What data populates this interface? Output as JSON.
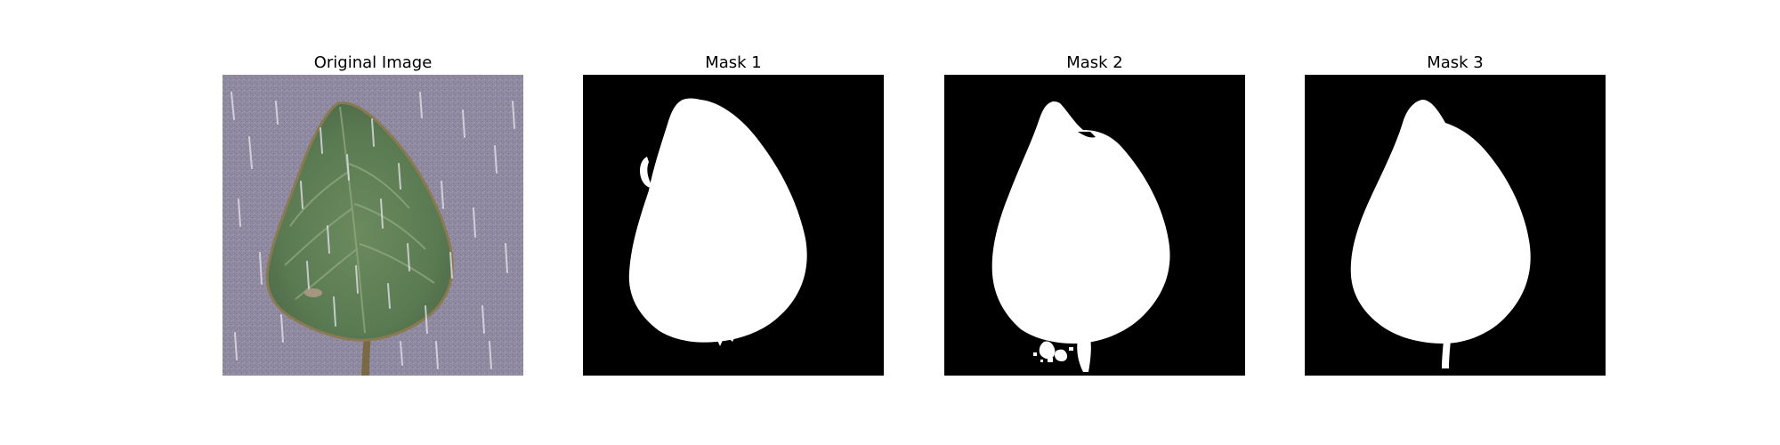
{
  "figure": {
    "panels": [
      {
        "title": "Original Image",
        "kind": "photo",
        "subject": "green leaf on a speckled purple-gray background with white rain streaks"
      },
      {
        "title": "Mask 1",
        "kind": "mask",
        "subject": "white leaf silhouette on black, with a small curved hook at upper left"
      },
      {
        "title": "Mask 2",
        "kind": "mask",
        "subject": "white leaf silhouette on black, with a notch near the tip and noisy blobs at the bottom"
      },
      {
        "title": "Mask 3",
        "kind": "mask",
        "subject": "white leaf silhouette on black, with a short stem at the bottom"
      }
    ]
  },
  "colors": {
    "mask_background": "#000000",
    "mask_foreground": "#ffffff",
    "photo_background": "#8f8aa0",
    "leaf_green": "#5a7a52",
    "leaf_vein": "#8fa67f",
    "leaf_edge": "#8a7a52",
    "stem": "#7a6a44",
    "rain_streak": "#e8e6ee"
  }
}
